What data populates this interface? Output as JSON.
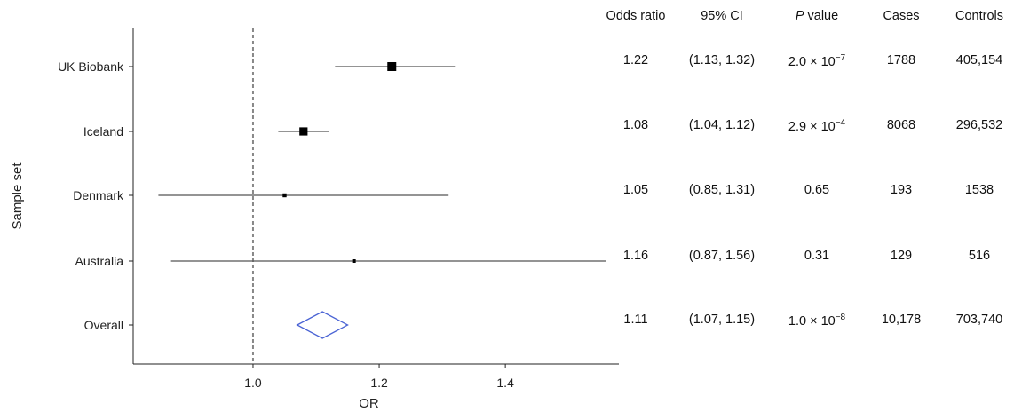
{
  "chart_data": {
    "type": "forest",
    "xlabel": "OR",
    "ylabel": "Sample set",
    "xlim": [
      0.81,
      1.58
    ],
    "xticks": [
      1.0,
      1.2,
      1.4
    ],
    "xtick_labels": [
      "1.0",
      "1.2",
      "1.4"
    ],
    "reference_line": 1.0,
    "rows": [
      {
        "label": "UK Biobank",
        "or": 1.22,
        "ci_low": 1.13,
        "ci_high": 1.32,
        "marker_weight": 1.0,
        "is_summary": false
      },
      {
        "label": "Iceland",
        "or": 1.08,
        "ci_low": 1.04,
        "ci_high": 1.12,
        "marker_weight": 0.9,
        "is_summary": false
      },
      {
        "label": "Denmark",
        "or": 1.05,
        "ci_low": 0.85,
        "ci_high": 1.31,
        "marker_weight": 0.3,
        "is_summary": false
      },
      {
        "label": "Australia",
        "or": 1.16,
        "ci_low": 0.87,
        "ci_high": 1.56,
        "marker_weight": 0.25,
        "is_summary": false
      },
      {
        "label": "Overall",
        "or": 1.11,
        "ci_low": 1.07,
        "ci_high": 1.15,
        "marker_weight": 0,
        "is_summary": true
      }
    ],
    "colors": {
      "point": "#000000",
      "ci": "#555555",
      "summary": "#4a63d4",
      "reference": "#888888"
    }
  },
  "table": {
    "headers": {
      "odds_ratio": "Odds ratio",
      "ci": "95% CI",
      "p_italic": "P",
      "p_rest": " value",
      "cases": "Cases",
      "controls": "Controls"
    },
    "rows": [
      {
        "odds_ratio": "1.22",
        "ci": "(1.13, 1.32)",
        "p_base": "2.0 × 10",
        "p_exp": "−7",
        "cases": "1788",
        "controls": "405,154"
      },
      {
        "odds_ratio": "1.08",
        "ci": "(1.04, 1.12)",
        "p_base": "2.9 × 10",
        "p_exp": "−4",
        "cases": "8068",
        "controls": "296,532"
      },
      {
        "odds_ratio": "1.05",
        "ci": "(0.85, 1.31)",
        "p_base": "0.65",
        "p_exp": "",
        "cases": "193",
        "controls": "1538"
      },
      {
        "odds_ratio": "1.16",
        "ci": "(0.87, 1.56)",
        "p_base": "0.31",
        "p_exp": "",
        "cases": "129",
        "controls": "516"
      },
      {
        "odds_ratio": "1.11",
        "ci": "(1.07, 1.15)",
        "p_base": "1.0 × 10",
        "p_exp": "−8",
        "cases": "10,178",
        "controls": "703,740"
      }
    ]
  }
}
